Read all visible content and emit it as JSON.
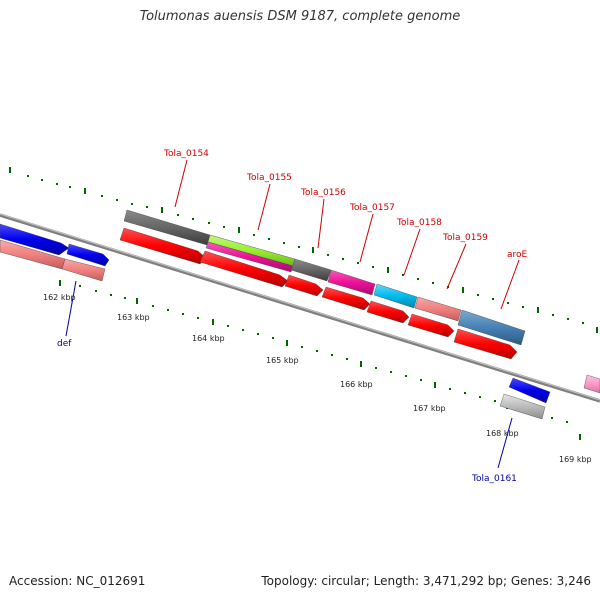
{
  "title": "Tolumonas auensis DSM 9187, complete genome",
  "footer": {
    "accession": "Accession: NC_012691",
    "topology": "Topology: circular; Length: 3,471,292 bp; Genes: 3,246"
  },
  "ticks": [
    "162 kbp",
    "163 kbp",
    "164 kbp",
    "165 kbp",
    "166 kbp",
    "167 kbp",
    "168 kbp",
    "169 kbp"
  ],
  "gene_labels": {
    "tola_0154": "Tola_0154",
    "tola_0155": "Tola_0155",
    "tola_0156": "Tola_0156",
    "tola_0157": "Tola_0157",
    "tola_0158": "Tola_0158",
    "tola_0159": "Tola_0159",
    "aroe": "aroE",
    "def": "def",
    "tola_0161": "Tola_0161"
  },
  "colors": {
    "label_red": "#cc0000",
    "label_blue": "#0000aa",
    "tick_green": "#006600",
    "backbone": "#808080",
    "cds_red": "#ff0000",
    "gene_blue": "#0000ee",
    "gene_salmon": "#f08080",
    "gene_gray": "#666666",
    "gene_green": "#99ee33",
    "gene_magenta": "#ee1199",
    "gene_cyan": "#00bbee",
    "gene_steel": "#4682b4",
    "gene_pink": "#ff99cc",
    "gene_lightgray": "#bbbbbb"
  }
}
